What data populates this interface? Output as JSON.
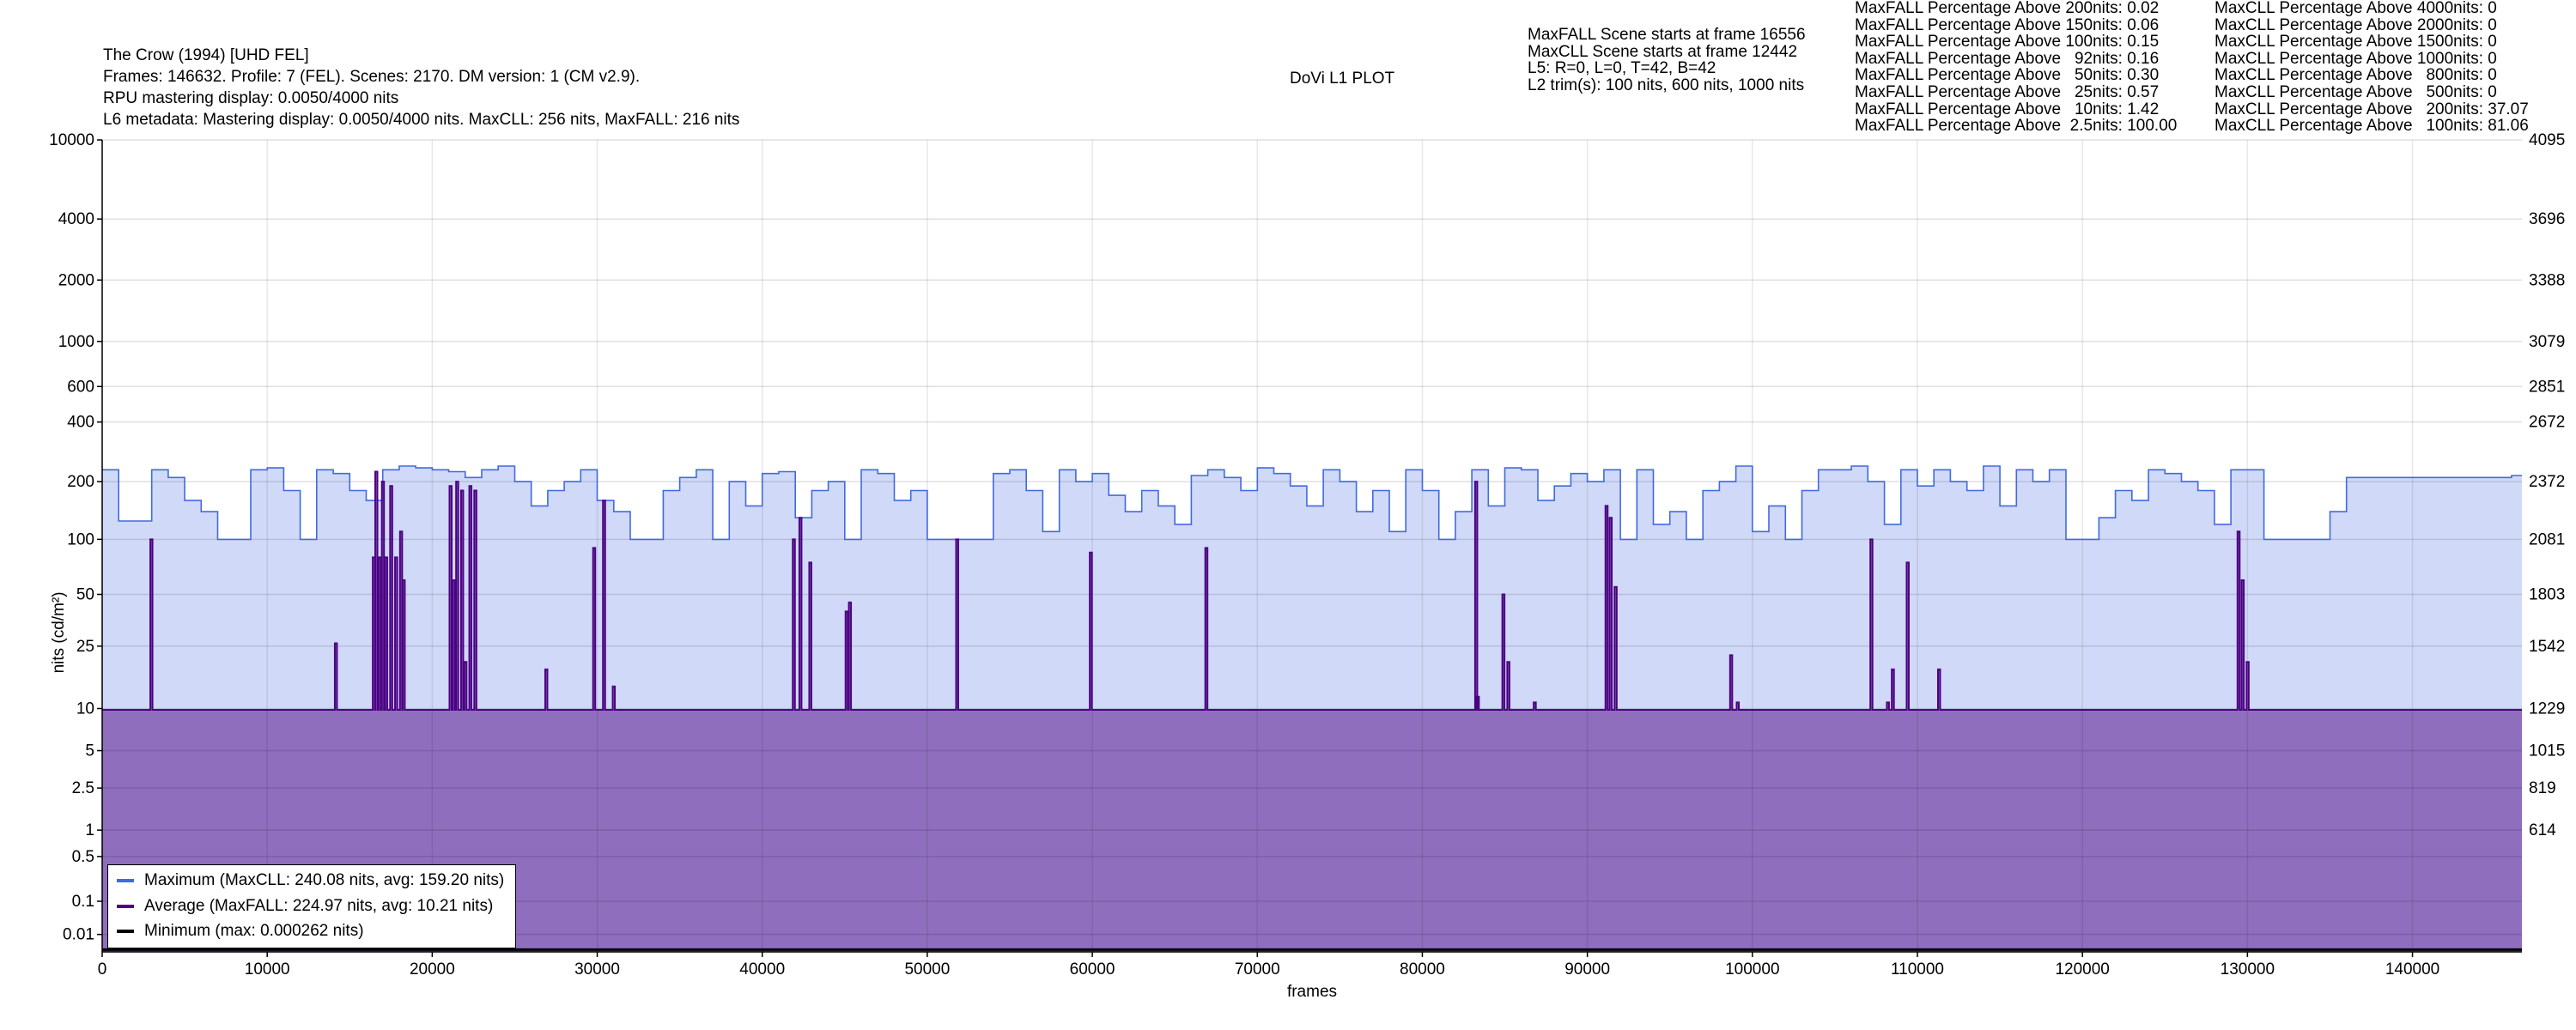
{
  "header": {
    "title": "The Crow (1994) [UHD FEL]",
    "info_line": "Frames: 146632. Profile: 7 (FEL). Scenes: 2170. DM version: 1 (CM v2.9).",
    "rpu_line": "RPU mastering display: 0.0050/4000 nits",
    "l6_line": "L6 metadata: Mastering display: 0.0050/4000 nits. MaxCLL: 256 nits, MaxFALL: 216 nits",
    "plot_title": "DoVi L1 PLOT"
  },
  "scene_info": [
    "MaxFALL Scene starts at frame 16556",
    "MaxCLL Scene starts at frame 12442",
    "L5: R=0, L=0, T=42, B=42",
    "L2 trim(s): 100 nits, 600 nits, 1000 nits"
  ],
  "maxfall_stats": [
    "MaxFALL Percentage Above 200nits: 0.02",
    "MaxFALL Percentage Above 150nits: 0.06",
    "MaxFALL Percentage Above 100nits: 0.15",
    "MaxFALL Percentage Above   92nits: 0.16",
    "MaxFALL Percentage Above   50nits: 0.30",
    "MaxFALL Percentage Above   25nits: 0.57",
    "MaxFALL Percentage Above   10nits: 1.42",
    "MaxFALL Percentage Above  2.5nits: 100.00"
  ],
  "maxcll_stats": [
    "MaxCLL Percentage Above 4000nits: 0",
    "MaxCLL Percentage Above 2000nits: 0",
    "MaxCLL Percentage Above 1500nits: 0",
    "MaxCLL Percentage Above 1000nits: 0",
    "MaxCLL Percentage Above   800nits: 0",
    "MaxCLL Percentage Above   500nits: 0",
    "MaxCLL Percentage Above   200nits: 37.07",
    "MaxCLL Percentage Above   100nits: 81.06"
  ],
  "chart_data": {
    "type": "area",
    "title": "DoVi L1 PLOT",
    "xlabel": "frames",
    "ylabel": "nits (cd/m²)",
    "xlim": [
      0,
      146632
    ],
    "ylim": [
      0,
      10000
    ],
    "y_scale": "PQ",
    "grid": true,
    "legend_position": "bottom-left",
    "x_ticks": [
      0,
      10000,
      20000,
      30000,
      40000,
      50000,
      60000,
      70000,
      80000,
      90000,
      100000,
      110000,
      120000,
      130000,
      140000
    ],
    "y_ticks": [
      {
        "nits": 10000,
        "label": "10000"
      },
      {
        "nits": 4000,
        "label": "4000"
      },
      {
        "nits": 2000,
        "label": "2000"
      },
      {
        "nits": 1000,
        "label": "1000"
      },
      {
        "nits": 600,
        "label": "600"
      },
      {
        "nits": 400,
        "label": "400"
      },
      {
        "nits": 200,
        "label": "200"
      },
      {
        "nits": 100,
        "label": "100"
      },
      {
        "nits": 50,
        "label": "50"
      },
      {
        "nits": 25,
        "label": "25"
      },
      {
        "nits": 10,
        "label": "10"
      },
      {
        "nits": 5,
        "label": "5"
      },
      {
        "nits": 2.5,
        "label": "2.5"
      },
      {
        "nits": 1,
        "label": "1"
      },
      {
        "nits": 0.5,
        "label": "0.5"
      },
      {
        "nits": 0.1,
        "label": "0.1"
      },
      {
        "nits": 0.01,
        "label": "0.01"
      }
    ],
    "y_ticks_right": [
      {
        "nits": 10000,
        "label": "4095"
      },
      {
        "nits": 4000,
        "label": "3696"
      },
      {
        "nits": 2000,
        "label": "3388"
      },
      {
        "nits": 1000,
        "label": "3079"
      },
      {
        "nits": 600,
        "label": "2851"
      },
      {
        "nits": 400,
        "label": "2672"
      },
      {
        "nits": 200,
        "label": "2372"
      },
      {
        "nits": 100,
        "label": "2081"
      },
      {
        "nits": 50,
        "label": "1803"
      },
      {
        "nits": 25,
        "label": "1542"
      },
      {
        "nits": 10,
        "label": "1229"
      },
      {
        "nits": 5,
        "label": "1015"
      },
      {
        "nits": 2.5,
        "label": "819"
      },
      {
        "nits": 1,
        "label": "614"
      }
    ],
    "series": [
      {
        "name": "Maximum",
        "legend": "Maximum (MaxCLL: 240.08 nits, avg: 159.20 nits)",
        "color": "#4169e1",
        "fill": "#d0d9f7",
        "sample_step_frames": 1000,
        "values": [
          230,
          125,
          125,
          230,
          210,
          160,
          140,
          100,
          100,
          230,
          235,
          180,
          100,
          230,
          220,
          180,
          160,
          230,
          240,
          235,
          230,
          225,
          210,
          230,
          240,
          200,
          150,
          180,
          200,
          230,
          160,
          140,
          100,
          100,
          180,
          210,
          230,
          100,
          200,
          150,
          220,
          225,
          130,
          180,
          200,
          100,
          230,
          220,
          160,
          180,
          100,
          100,
          100,
          100,
          220,
          230,
          180,
          110,
          230,
          200,
          220,
          170,
          140,
          180,
          150,
          120,
          215,
          230,
          210,
          180,
          235,
          220,
          190,
          150,
          230,
          200,
          140,
          180,
          110,
          230,
          180,
          100,
          140,
          230,
          150,
          235,
          230,
          160,
          190,
          220,
          200,
          230,
          100,
          230,
          120,
          140,
          100,
          180,
          200,
          240,
          110,
          150,
          100,
          180,
          230,
          230,
          240,
          200,
          120,
          230,
          190,
          230,
          200,
          180,
          240,
          150,
          230,
          200,
          230,
          100,
          100,
          130,
          180,
          160,
          230,
          220,
          200,
          180,
          120,
          230,
          230,
          100,
          100,
          100,
          100,
          140,
          210,
          210,
          210,
          210,
          210,
          210,
          210,
          210,
          210,
          210,
          215
        ]
      },
      {
        "name": "Average",
        "legend": "Average (MaxFALL: 224.97 nits, avg: 10.21 nits)",
        "color": "#4b0082",
        "fill": "#8e6ebd",
        "baseline": 9.8,
        "spikes": [
          [
            2970,
            100
          ],
          [
            14150,
            26
          ],
          [
            16450,
            80
          ],
          [
            16600,
            225
          ],
          [
            16800,
            80
          ],
          [
            17000,
            200
          ],
          [
            17200,
            80
          ],
          [
            17500,
            190
          ],
          [
            17800,
            80
          ],
          [
            18100,
            110
          ],
          [
            18260,
            60
          ],
          [
            21100,
            190
          ],
          [
            21300,
            60
          ],
          [
            21500,
            200
          ],
          [
            21800,
            180
          ],
          [
            22000,
            20
          ],
          [
            22300,
            190
          ],
          [
            22600,
            180
          ],
          [
            26900,
            18
          ],
          [
            29800,
            90
          ],
          [
            30400,
            160
          ],
          [
            30990,
            14
          ],
          [
            41900,
            100
          ],
          [
            42300,
            130
          ],
          [
            42900,
            75
          ],
          [
            45100,
            40
          ],
          [
            45300,
            45
          ],
          [
            51800,
            100
          ],
          [
            59900,
            85
          ],
          [
            66900,
            90
          ],
          [
            83250,
            200
          ],
          [
            83350,
            12
          ],
          [
            84900,
            50
          ],
          [
            85200,
            20
          ],
          [
            86800,
            11
          ],
          [
            91150,
            150
          ],
          [
            91400,
            130
          ],
          [
            91700,
            55
          ],
          [
            98700,
            22
          ],
          [
            99100,
            11
          ],
          [
            107200,
            100
          ],
          [
            108200,
            11
          ],
          [
            108500,
            18
          ],
          [
            109400,
            75
          ],
          [
            111300,
            18
          ],
          [
            129450,
            110
          ],
          [
            129700,
            60
          ],
          [
            130000,
            20
          ]
        ]
      },
      {
        "name": "Minimum",
        "legend": "Minimum (max: 0.000262 nits)",
        "color": "#000000",
        "baseline": 0.0001
      }
    ]
  }
}
